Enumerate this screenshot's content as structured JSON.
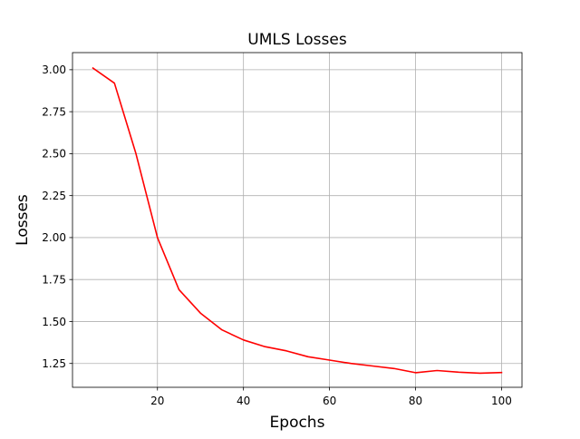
{
  "chart_data": {
    "type": "line",
    "title": "UMLS Losses",
    "xlabel": "Epochs",
    "ylabel": "Losses",
    "xlim": [
      0.25,
      104.75
    ],
    "ylim": [
      1.108,
      3.102
    ],
    "xticks": [
      20,
      40,
      60,
      80,
      100
    ],
    "yticks": [
      1.25,
      1.5,
      1.75,
      2.0,
      2.25,
      2.5,
      2.75,
      3.0
    ],
    "xtick_labels": [
      "20",
      "40",
      "60",
      "80",
      "100"
    ],
    "ytick_labels": [
      "1.25",
      "1.50",
      "1.75",
      "2.00",
      "2.25",
      "2.50",
      "2.75",
      "3.00"
    ],
    "grid": true,
    "series": [
      {
        "color": "#ff0000",
        "x": [
          5,
          10,
          15,
          20,
          25,
          30,
          35,
          40,
          45,
          50,
          55,
          60,
          65,
          70,
          75,
          80,
          85,
          90,
          95,
          100
        ],
        "y": [
          3.01,
          2.92,
          2.5,
          2.0,
          1.69,
          1.55,
          1.45,
          1.39,
          1.35,
          1.325,
          1.29,
          1.27,
          1.25,
          1.235,
          1.22,
          1.195,
          1.208,
          1.198,
          1.192,
          1.196
        ]
      }
    ]
  }
}
